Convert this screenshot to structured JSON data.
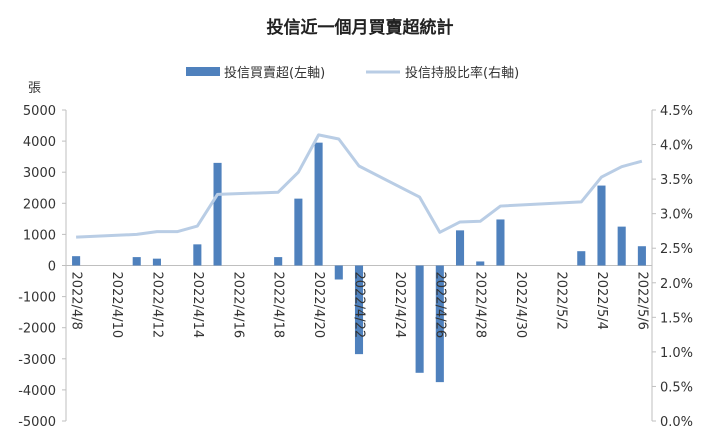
{
  "chart_data": {
    "type": "bar+line",
    "title": "投信近一個月買賣超統計",
    "ylabel_left": "張",
    "left_axis": {
      "ylim": [
        -5000,
        5000
      ],
      "ticks": [
        -5000,
        -4000,
        -3000,
        -2000,
        -1000,
        0,
        1000,
        2000,
        3000,
        4000,
        5000
      ]
    },
    "right_axis": {
      "ylim": [
        0.0,
        4.5
      ],
      "ticks": [
        "0.0%",
        "0.5%",
        "1.0%",
        "1.5%",
        "2.0%",
        "2.5%",
        "3.0%",
        "3.5%",
        "4.0%",
        "4.5%"
      ]
    },
    "x_tick_labels": [
      "2022/4/8",
      "2022/4/10",
      "2022/4/12",
      "2022/4/14",
      "2022/4/16",
      "2022/4/18",
      "2022/4/20",
      "2022/4/22",
      "2022/4/24",
      "2022/4/26",
      "2022/4/28",
      "2022/4/30",
      "2022/5/2",
      "2022/5/4",
      "2022/5/6"
    ],
    "x": [
      "2022/4/8",
      "2022/4/9",
      "2022/4/10",
      "2022/4/11",
      "2022/4/12",
      "2022/4/13",
      "2022/4/14",
      "2022/4/15",
      "2022/4/16",
      "2022/4/17",
      "2022/4/18",
      "2022/4/19",
      "2022/4/20",
      "2022/4/21",
      "2022/4/22",
      "2022/4/23",
      "2022/4/24",
      "2022/4/25",
      "2022/4/26",
      "2022/4/27",
      "2022/4/28",
      "2022/4/29",
      "2022/4/30",
      "2022/5/1",
      "2022/5/2",
      "2022/5/3",
      "2022/5/4",
      "2022/5/5",
      "2022/5/6"
    ],
    "series": [
      {
        "name": "投信買賣超(左軸)",
        "type": "bar",
        "axis": "left",
        "color": "#4f81bd",
        "values": [
          300,
          null,
          null,
          270,
          220,
          null,
          680,
          3300,
          null,
          null,
          270,
          2150,
          3950,
          -450,
          -2850,
          null,
          null,
          -3450,
          -3750,
          1130,
          130,
          1480,
          null,
          null,
          null,
          460,
          2570,
          1250,
          620
        ]
      },
      {
        "name": "投信持股比率(右軸)",
        "type": "line",
        "axis": "right",
        "color": "#b9cde5",
        "values": [
          2.66,
          null,
          null,
          2.7,
          2.74,
          2.74,
          2.82,
          3.28,
          null,
          null,
          3.31,
          3.6,
          4.14,
          4.08,
          3.69,
          null,
          null,
          3.24,
          2.73,
          2.88,
          2.89,
          3.11,
          null,
          null,
          null,
          3.17,
          3.53,
          3.68,
          3.76
        ]
      }
    ],
    "legend": "top-center",
    "grid": false
  }
}
